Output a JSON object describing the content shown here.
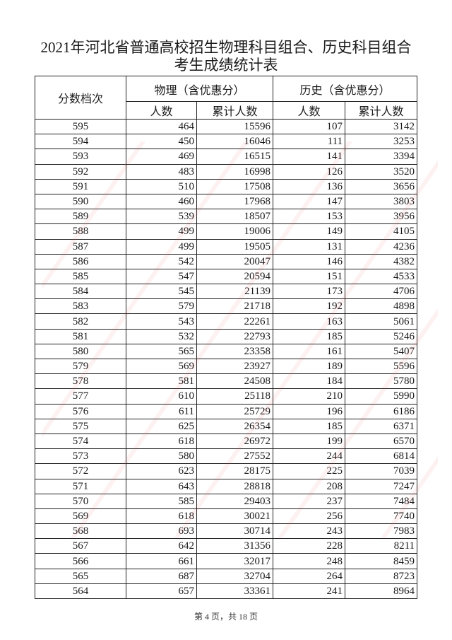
{
  "title": {
    "line1": "2021年河北省普通高校招生物理科目组合、历史科目组合",
    "line2": "考生成绩统计表"
  },
  "table": {
    "header": {
      "score": "分数档次",
      "physics": "物理（含优惠分）",
      "history": "历史（含优惠分）",
      "count": "人数",
      "cumulative": "累计人数"
    },
    "rows": [
      [
        "595",
        "464",
        "15596",
        "107",
        "3142"
      ],
      [
        "594",
        "450",
        "16046",
        "111",
        "3253"
      ],
      [
        "593",
        "469",
        "16515",
        "141",
        "3394"
      ],
      [
        "592",
        "483",
        "16998",
        "126",
        "3520"
      ],
      [
        "591",
        "510",
        "17508",
        "136",
        "3656"
      ],
      [
        "590",
        "460",
        "17968",
        "147",
        "3803"
      ],
      [
        "589",
        "539",
        "18507",
        "153",
        "3956"
      ],
      [
        "588",
        "499",
        "19006",
        "149",
        "4105"
      ],
      [
        "587",
        "499",
        "19505",
        "131",
        "4236"
      ],
      [
        "586",
        "542",
        "20047",
        "146",
        "4382"
      ],
      [
        "585",
        "547",
        "20594",
        "151",
        "4533"
      ],
      [
        "584",
        "545",
        "21139",
        "173",
        "4706"
      ],
      [
        "583",
        "579",
        "21718",
        "192",
        "4898"
      ],
      [
        "582",
        "543",
        "22261",
        "163",
        "5061"
      ],
      [
        "581",
        "532",
        "22793",
        "185",
        "5246"
      ],
      [
        "580",
        "565",
        "23358",
        "161",
        "5407"
      ],
      [
        "579",
        "569",
        "23927",
        "189",
        "5596"
      ],
      [
        "578",
        "581",
        "24508",
        "184",
        "5780"
      ],
      [
        "577",
        "610",
        "25118",
        "210",
        "5990"
      ],
      [
        "576",
        "611",
        "25729",
        "196",
        "6186"
      ],
      [
        "575",
        "625",
        "26354",
        "185",
        "6371"
      ],
      [
        "574",
        "618",
        "26972",
        "199",
        "6570"
      ],
      [
        "573",
        "580",
        "27552",
        "244",
        "6814"
      ],
      [
        "572",
        "623",
        "28175",
        "225",
        "7039"
      ],
      [
        "571",
        "643",
        "28818",
        "208",
        "7247"
      ],
      [
        "570",
        "585",
        "29403",
        "237",
        "7484"
      ],
      [
        "569",
        "618",
        "30021",
        "256",
        "7740"
      ],
      [
        "568",
        "693",
        "30714",
        "243",
        "7983"
      ],
      [
        "567",
        "642",
        "31356",
        "228",
        "8211"
      ],
      [
        "566",
        "661",
        "32017",
        "248",
        "8459"
      ],
      [
        "565",
        "687",
        "32704",
        "264",
        "8723"
      ],
      [
        "564",
        "657",
        "33361",
        "241",
        "8964"
      ]
    ]
  },
  "footer": "第 4 页，共 18 页",
  "watermark_color": "#e65050"
}
